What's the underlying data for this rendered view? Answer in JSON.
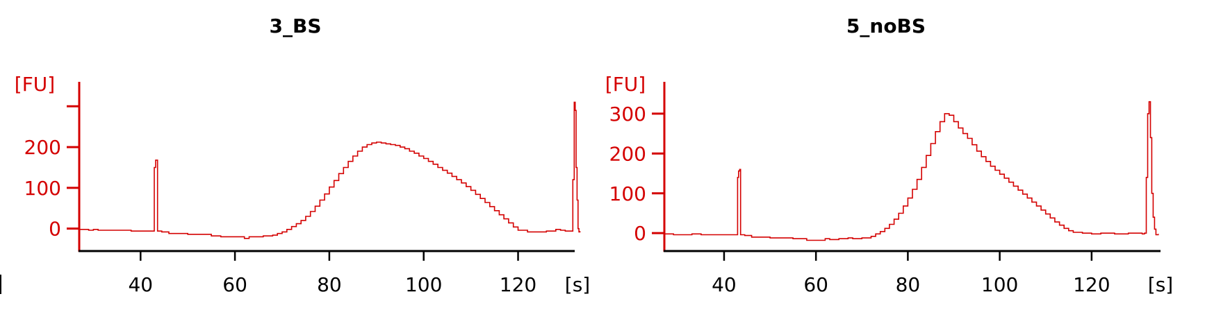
{
  "colors": {
    "axis": "#d40000",
    "trace": "#d40000",
    "baseline": "#000000",
    "title": "#000000",
    "xtick": "#000000"
  },
  "chart_data": [
    {
      "type": "line",
      "title": "3_BS",
      "ylabel": "[FU]",
      "xlabel": "[s]",
      "xlim": [
        27,
        132
      ],
      "ylim": [
        -55,
        360
      ],
      "xticks": [
        40,
        60,
        80,
        100,
        120
      ],
      "yticks": [
        0,
        100,
        200
      ],
      "yticklabels": [
        "0",
        "100",
        "200"
      ],
      "extra_ytick_marks": [
        300
      ],
      "series": [
        {
          "points": [
            [
              27,
              -2
            ],
            [
              28,
              -2
            ],
            [
              29,
              -4
            ],
            [
              30,
              -2
            ],
            [
              31,
              -4
            ],
            [
              33,
              -4
            ],
            [
              36,
              -4
            ],
            [
              38,
              -6
            ],
            [
              40,
              -6
            ],
            [
              42.6,
              -6
            ],
            [
              42.9,
              150
            ],
            [
              43.2,
              168
            ],
            [
              43.4,
              168
            ],
            [
              43.6,
              -6
            ],
            [
              44.5,
              -8
            ],
            [
              46,
              -12
            ],
            [
              48,
              -12
            ],
            [
              50,
              -14
            ],
            [
              52,
              -14
            ],
            [
              55,
              -18
            ],
            [
              57,
              -20
            ],
            [
              60,
              -20
            ],
            [
              62,
              -24
            ],
            [
              63,
              -20
            ],
            [
              65,
              -20
            ],
            [
              66,
              -18
            ],
            [
              68,
              -16
            ],
            [
              69,
              -12
            ],
            [
              70,
              -8
            ],
            [
              71,
              -2
            ],
            [
              72,
              5
            ],
            [
              73,
              12
            ],
            [
              74,
              20
            ],
            [
              75,
              30
            ],
            [
              76,
              42
            ],
            [
              77,
              55
            ],
            [
              78,
              70
            ],
            [
              79,
              85
            ],
            [
              80,
              102
            ],
            [
              81,
              118
            ],
            [
              82,
              135
            ],
            [
              83,
              150
            ],
            [
              84,
              165
            ],
            [
              85,
              178
            ],
            [
              86,
              190
            ],
            [
              87,
              200
            ],
            [
              88,
              206
            ],
            [
              89,
              210
            ],
            [
              90,
              212
            ],
            [
              91,
              210
            ],
            [
              92,
              208
            ],
            [
              93,
              206
            ],
            [
              94,
              204
            ],
            [
              95,
              200
            ],
            [
              96,
              196
            ],
            [
              97,
              190
            ],
            [
              98,
              185
            ],
            [
              99,
              178
            ],
            [
              100,
              172
            ],
            [
              101,
              165
            ],
            [
              102,
              158
            ],
            [
              103,
              150
            ],
            [
              104,
              143
            ],
            [
              105,
              136
            ],
            [
              106,
              128
            ],
            [
              107,
              120
            ],
            [
              108,
              112
            ],
            [
              109,
              103
            ],
            [
              110,
              94
            ],
            [
              111,
              84
            ],
            [
              112,
              74
            ],
            [
              113,
              64
            ],
            [
              114,
              54
            ],
            [
              115,
              44
            ],
            [
              116,
              34
            ],
            [
              117,
              24
            ],
            [
              118,
              14
            ],
            [
              119,
              4
            ],
            [
              120,
              -4
            ],
            [
              122,
              -8
            ],
            [
              124,
              -8
            ],
            [
              126,
              -6
            ],
            [
              128,
              -2
            ],
            [
              129,
              -4
            ],
            [
              130,
              -6
            ],
            [
              131.3,
              -6
            ],
            [
              131.6,
              120
            ],
            [
              131.9,
              310
            ],
            [
              132.1,
              290
            ],
            [
              132.3,
              150
            ],
            [
              132.5,
              70
            ],
            [
              132.7,
              0
            ],
            [
              132.9,
              -8
            ],
            [
              133.1,
              -6
            ]
          ]
        }
      ]
    },
    {
      "type": "line",
      "title": "5_noBS",
      "ylabel": "[FU]",
      "xlabel": "[s]",
      "xlim": [
        27,
        135
      ],
      "ylim": [
        -45,
        380
      ],
      "xticks": [
        40,
        60,
        80,
        100,
        120
      ],
      "yticks": [
        0,
        100,
        200,
        300
      ],
      "yticklabels": [
        "0",
        "100",
        "200",
        "300"
      ],
      "extra_ytick_marks": [],
      "series": [
        {
          "points": [
            [
              27,
              -2
            ],
            [
              28,
              -2
            ],
            [
              29,
              -4
            ],
            [
              31,
              -4
            ],
            [
              33,
              -2
            ],
            [
              35,
              -4
            ],
            [
              38,
              -4
            ],
            [
              40,
              -4
            ],
            [
              42.7,
              -4
            ],
            [
              42.95,
              140
            ],
            [
              43.15,
              156
            ],
            [
              43.4,
              160
            ],
            [
              43.6,
              -4
            ],
            [
              44.5,
              -6
            ],
            [
              46,
              -10
            ],
            [
              48,
              -10
            ],
            [
              50,
              -12
            ],
            [
              52,
              -12
            ],
            [
              55,
              -14
            ],
            [
              57,
              -14
            ],
            [
              58,
              -18
            ],
            [
              60,
              -18
            ],
            [
              62,
              -14
            ],
            [
              63,
              -16
            ],
            [
              65,
              -14
            ],
            [
              67,
              -12
            ],
            [
              68,
              -14
            ],
            [
              70,
              -12
            ],
            [
              72,
              -8
            ],
            [
              73,
              -2
            ],
            [
              74,
              4
            ],
            [
              75,
              12
            ],
            [
              76,
              22
            ],
            [
              77,
              35
            ],
            [
              78,
              50
            ],
            [
              79,
              68
            ],
            [
              80,
              88
            ],
            [
              81,
              110
            ],
            [
              82,
              135
            ],
            [
              83,
              165
            ],
            [
              84,
              195
            ],
            [
              85,
              225
            ],
            [
              86,
              255
            ],
            [
              87,
              280
            ],
            [
              88,
              300
            ],
            [
              89,
              296
            ],
            [
              90,
              280
            ],
            [
              91,
              264
            ],
            [
              92,
              250
            ],
            [
              93,
              238
            ],
            [
              94,
              222
            ],
            [
              95,
              206
            ],
            [
              96,
              192
            ],
            [
              97,
              180
            ],
            [
              98,
              168
            ],
            [
              99,
              158
            ],
            [
              100,
              148
            ],
            [
              101,
              138
            ],
            [
              102,
              128
            ],
            [
              103,
              118
            ],
            [
              104,
              108
            ],
            [
              105,
              98
            ],
            [
              106,
              88
            ],
            [
              107,
              78
            ],
            [
              108,
              68
            ],
            [
              109,
              58
            ],
            [
              110,
              48
            ],
            [
              111,
              38
            ],
            [
              112,
              28
            ],
            [
              113,
              20
            ],
            [
              114,
              12
            ],
            [
              115,
              6
            ],
            [
              116,
              2
            ],
            [
              118,
              0
            ],
            [
              120,
              -2
            ],
            [
              122,
              0
            ],
            [
              125,
              -2
            ],
            [
              128,
              0
            ],
            [
              131,
              -2
            ],
            [
              131.5,
              0
            ],
            [
              131.9,
              140
            ],
            [
              132.2,
              300
            ],
            [
              132.5,
              330
            ],
            [
              132.8,
              240
            ],
            [
              133.1,
              100
            ],
            [
              133.4,
              40
            ],
            [
              133.7,
              10
            ],
            [
              134,
              -4
            ],
            [
              134.5,
              -2
            ]
          ]
        }
      ]
    }
  ]
}
